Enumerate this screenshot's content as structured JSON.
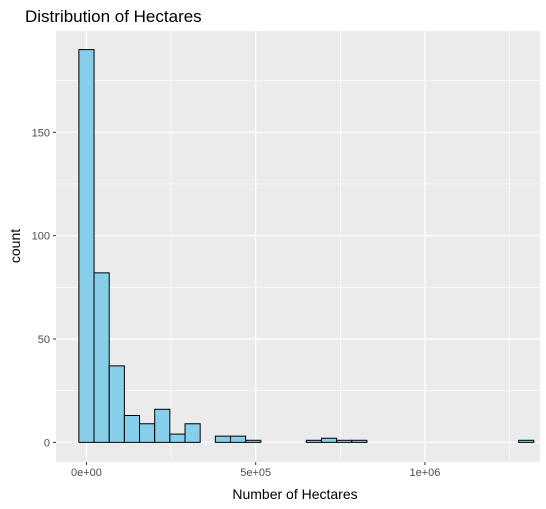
{
  "chart_data": {
    "type": "bar",
    "title": "Distribution of Hectares",
    "xlabel": "Number of Hectares",
    "ylabel": "count",
    "xlim": [
      -90000,
      1340000
    ],
    "ylim": [
      -9.5,
      199
    ],
    "x_ticks": [
      {
        "value": 0,
        "label": "0e+00"
      },
      {
        "value": 500000,
        "label": "5e+05"
      },
      {
        "value": 1000000,
        "label": "1e+06"
      }
    ],
    "y_ticks": [
      {
        "value": 0,
        "label": "0"
      },
      {
        "value": 50,
        "label": "50"
      },
      {
        "value": 100,
        "label": "100"
      },
      {
        "value": 150,
        "label": "150"
      }
    ],
    "bin_width": 44800,
    "bins": [
      {
        "x0": -22400,
        "count": 190
      },
      {
        "x0": 22400,
        "count": 82
      },
      {
        "x0": 67200,
        "count": 37
      },
      {
        "x0": 112000,
        "count": 13
      },
      {
        "x0": 156800,
        "count": 9
      },
      {
        "x0": 201600,
        "count": 16
      },
      {
        "x0": 246400,
        "count": 4
      },
      {
        "x0": 291200,
        "count": 9
      },
      {
        "x0": 336000,
        "count": 0
      },
      {
        "x0": 380800,
        "count": 3
      },
      {
        "x0": 425600,
        "count": 3
      },
      {
        "x0": 470400,
        "count": 1
      },
      {
        "x0": 515200,
        "count": 0
      },
      {
        "x0": 560000,
        "count": 0
      },
      {
        "x0": 604800,
        "count": 0
      },
      {
        "x0": 649600,
        "count": 1
      },
      {
        "x0": 694400,
        "count": 2
      },
      {
        "x0": 739200,
        "count": 1
      },
      {
        "x0": 784000,
        "count": 1
      },
      {
        "x0": 828800,
        "count": 0
      },
      {
        "x0": 873600,
        "count": 0
      },
      {
        "x0": 918400,
        "count": 0
      },
      {
        "x0": 963200,
        "count": 0
      },
      {
        "x0": 1008000,
        "count": 0
      },
      {
        "x0": 1052800,
        "count": 0
      },
      {
        "x0": 1097600,
        "count": 0
      },
      {
        "x0": 1142400,
        "count": 0
      },
      {
        "x0": 1187200,
        "count": 0
      },
      {
        "x0": 1232000,
        "count": 0
      },
      {
        "x0": 1276800,
        "count": 1
      }
    ],
    "bar_fill": "#87CEEB",
    "bar_stroke": "#000000",
    "panel_background": "#EBEBEB",
    "grid": true,
    "legend": "none"
  }
}
